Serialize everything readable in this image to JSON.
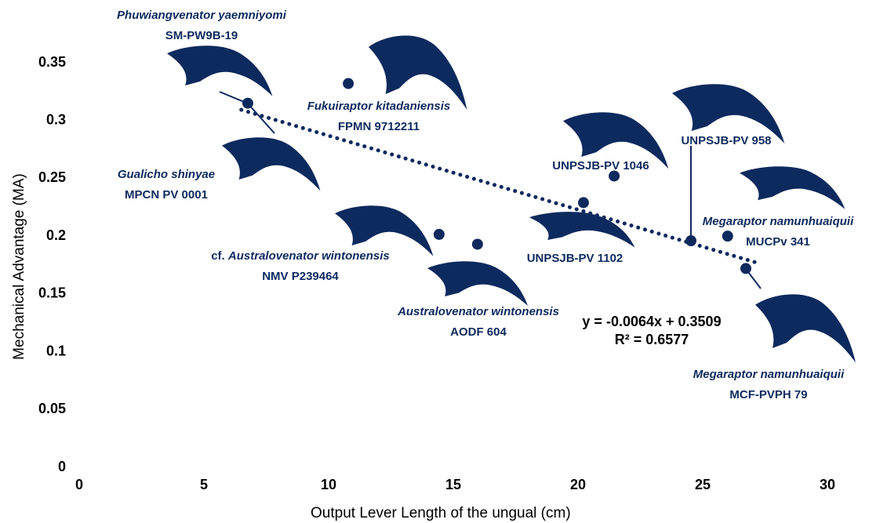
{
  "chart_data": {
    "type": "scatter",
    "x_label": "Output Lever Length of the ungual (cm)",
    "y_label": "Mechanical Advantage (MA)",
    "x": [
      6.76,
      10.79,
      14.43,
      15.97,
      20.22,
      21.45,
      24.53,
      26.0,
      26.73
    ],
    "values": [
      0.315,
      0.332,
      0.2015,
      0.193,
      0.229,
      0.252,
      0.196,
      0.2,
      0.172
    ],
    "color": "#0d2a5e",
    "xlim": [
      0,
      30
    ],
    "xticks": [
      0,
      5,
      10,
      15,
      20,
      25,
      30
    ],
    "ylim": [
      0,
      0.35
    ],
    "yticks": [
      0,
      0.05,
      0.1,
      0.15,
      0.2,
      0.25,
      0.3,
      0.35
    ],
    "grid": false,
    "trendline": {
      "slope": -0.0064,
      "intercept": 0.3509,
      "xrange": [
        6.5,
        27.3
      ],
      "equation": "y = -0.0064x + 0.3509",
      "r2": "R² = 0.6577"
    },
    "annotations": [
      {
        "name": "Phuwiangvenator yaemniyomi",
        "specimen": "SM-PW9B-19"
      },
      {
        "name": "Fukuiraptor kitadaniensis",
        "specimen": "FPMN 9712211"
      },
      {
        "name": "Gualicho shinyae",
        "specimen": "MPCN PV 0001"
      },
      {
        "prefix": "cf.",
        "name": "Australovenator wintonensis",
        "specimen": "NMV P239464"
      },
      {
        "name": "Australovenator wintonensis",
        "specimen": "AODF 604"
      },
      {
        "specimen": "UNPSJB-PV 1102"
      },
      {
        "specimen": "UNPSJB-PV 1046"
      },
      {
        "specimen": "UNPSJB-PV 958"
      },
      {
        "name": "Megaraptor namunhuaiquii",
        "specimen": "MUCPv 341"
      },
      {
        "name": "Megaraptor namunhuaiquii",
        "specimen": "MCF-PVPH 79"
      }
    ]
  }
}
